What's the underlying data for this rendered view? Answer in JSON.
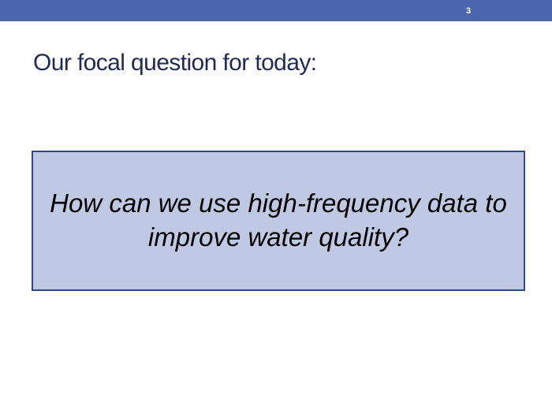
{
  "slide": {
    "number": "3",
    "title": "Our focal question for today:",
    "question": "How can we use high-frequency data to improve water quality?"
  },
  "colors": {
    "header_bar": "#4A66AC",
    "title_text": "#1F2A5A",
    "box_fill": "#BFC9E3",
    "box_border": "#2F4A86",
    "question_text": "#000000"
  }
}
